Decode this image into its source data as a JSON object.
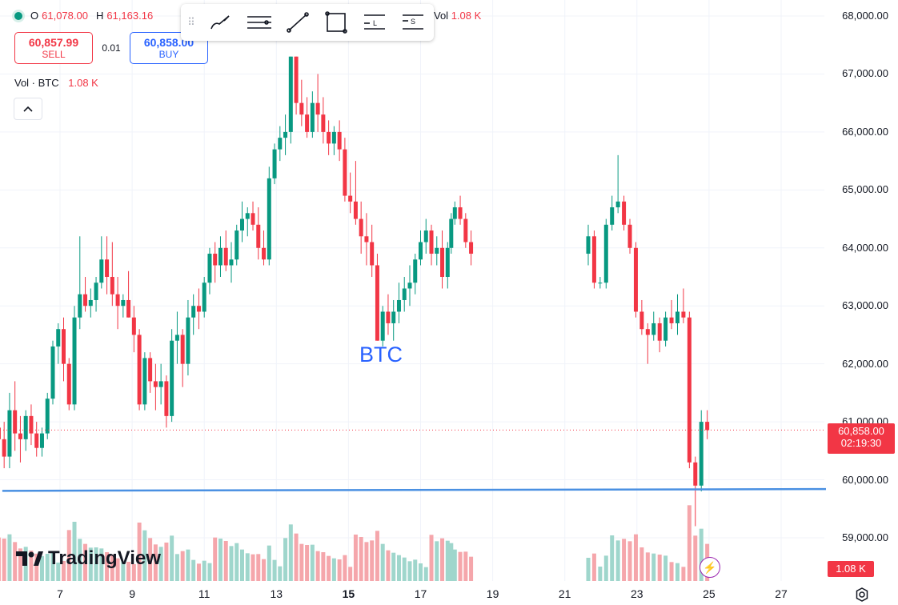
{
  "legend": {
    "open_label": "O",
    "open_value": "61,078.00",
    "high_label": "H",
    "high_value": "61,163.16",
    "vol_label": "Vol",
    "vol_value": "1.08 K"
  },
  "trade": {
    "sell_price": "60,857.99",
    "sell_label": "SELL",
    "spread": "0.01",
    "buy_price": "60,858.00",
    "buy_label": "BUY"
  },
  "volume_legend": {
    "label": "Vol · BTC",
    "value": "1.08 K"
  },
  "collapse_icon": "chevron-up",
  "toolbar_icons": [
    "drag-handle-icon",
    "brush-icon",
    "horizontal-lines-icon",
    "trend-line-icon",
    "rectangle-icon",
    "long-position-icon",
    "short-position-icon"
  ],
  "watermark": "BTC",
  "logo_text": "TradingView",
  "price_tag": {
    "price": "60,858.00",
    "countdown": "02:19:30"
  },
  "volume_tag": "1.08 K",
  "colors": {
    "up": "#089981",
    "down": "#f23645",
    "up_volume": "#9fd6cc",
    "down_volume": "#f5a6ab",
    "line": "#4a90e2",
    "accent": "#2962ff"
  },
  "chart_data": {
    "type": "candlestick",
    "symbol": "BTC",
    "y_ticks": [
      "68,000.00",
      "67,000.00",
      "66,000.00",
      "65,000.00",
      "64,000.00",
      "63,000.00",
      "62,000.00",
      "61,000.00",
      "60,000.00",
      "59,000.00"
    ],
    "x_ticks": [
      {
        "label": "7",
        "major": false
      },
      {
        "label": "9",
        "major": false
      },
      {
        "label": "11",
        "major": false
      },
      {
        "label": "13",
        "major": false
      },
      {
        "label": "15",
        "major": true
      },
      {
        "label": "17",
        "major": false
      },
      {
        "label": "19",
        "major": false
      },
      {
        "label": "21",
        "major": false
      },
      {
        "label": "23",
        "major": false
      },
      {
        "label": "25",
        "major": false
      },
      {
        "label": "27",
        "major": false
      }
    ],
    "x_range_days": [
      5.15,
      28.1
    ],
    "y_range": [
      58400,
      68400
    ],
    "last_price": 60858,
    "horizontal_line": {
      "y_start": 59810,
      "y_end": 59840,
      "x_start_day": 5.4,
      "x_end_day": 27.7
    },
    "bars_per_day": 6,
    "ohlc": [
      [
        5.15,
        61300,
        61400,
        60700,
        60900
      ],
      [
        5.3,
        60900,
        61100,
        60500,
        60700
      ],
      [
        5.45,
        60700,
        61000,
        60200,
        60400
      ],
      [
        5.6,
        60400,
        61500,
        60200,
        61200
      ],
      [
        5.75,
        61200,
        61700,
        60500,
        60800
      ],
      [
        5.9,
        60800,
        61100,
        60300,
        60700
      ],
      [
        6.05,
        60700,
        61200,
        60500,
        61100
      ],
      [
        6.2,
        61100,
        61300,
        60600,
        60800
      ],
      [
        6.35,
        60800,
        61000,
        60400,
        60550
      ],
      [
        6.5,
        60550,
        60900,
        60400,
        60800
      ],
      [
        6.65,
        60800,
        61500,
        60700,
        61400
      ],
      [
        6.8,
        61400,
        62400,
        61300,
        62300
      ],
      [
        6.95,
        62300,
        62700,
        62000,
        62600
      ],
      [
        7.1,
        62600,
        62800,
        61700,
        62000
      ],
      [
        7.25,
        62000,
        62100,
        61200,
        61300
      ],
      [
        7.4,
        61300,
        63000,
        61200,
        62800
      ],
      [
        7.55,
        62800,
        64200,
        62600,
        63200
      ],
      [
        7.7,
        63200,
        63500,
        62900,
        63000
      ],
      [
        7.85,
        63000,
        63300,
        62800,
        63100
      ],
      [
        8.0,
        63100,
        63500,
        62900,
        63400
      ],
      [
        8.15,
        63400,
        64200,
        63300,
        63800
      ],
      [
        8.3,
        63800,
        64200,
        63200,
        63500
      ],
      [
        8.45,
        63500,
        64100,
        63000,
        63200
      ],
      [
        8.6,
        63200,
        63500,
        62600,
        63000
      ],
      [
        8.75,
        63000,
        63200,
        62800,
        63100
      ],
      [
        8.9,
        63100,
        63600,
        62800,
        62800
      ],
      [
        9.05,
        62800,
        63000,
        62200,
        62500
      ],
      [
        9.2,
        62500,
        62600,
        61200,
        61300
      ],
      [
        9.35,
        61300,
        62200,
        61200,
        62100
      ],
      [
        9.5,
        62100,
        62200,
        61500,
        61700
      ],
      [
        9.65,
        61700,
        62000,
        61200,
        61600
      ],
      [
        9.8,
        61600,
        62000,
        61300,
        61700
      ],
      [
        9.95,
        61700,
        61800,
        60900,
        61100
      ],
      [
        10.1,
        61100,
        62600,
        61000,
        62400
      ],
      [
        10.25,
        62400,
        62900,
        62000,
        62500
      ],
      [
        10.4,
        62500,
        62600,
        61600,
        62000
      ],
      [
        10.55,
        62000,
        63100,
        61800,
        62800
      ],
      [
        10.7,
        62800,
        63200,
        62500,
        63000
      ],
      [
        10.85,
        63000,
        63300,
        62600,
        62900
      ],
      [
        11.0,
        62900,
        63500,
        62800,
        63400
      ],
      [
        11.15,
        63400,
        64000,
        63200,
        63900
      ],
      [
        11.3,
        63900,
        64100,
        63400,
        63700
      ],
      [
        11.45,
        63700,
        64200,
        63500,
        64000
      ],
      [
        11.6,
        64000,
        64300,
        63600,
        63700
      ],
      [
        11.75,
        63700,
        64100,
        63400,
        63800
      ],
      [
        11.9,
        63800,
        64400,
        63700,
        64300
      ],
      [
        12.05,
        64300,
        64800,
        64100,
        64500
      ],
      [
        12.2,
        64500,
        64700,
        64200,
        64600
      ],
      [
        12.35,
        64600,
        64800,
        64300,
        64400
      ],
      [
        12.5,
        64400,
        64700,
        63800,
        64000
      ],
      [
        12.65,
        64000,
        64300,
        63700,
        63800
      ],
      [
        12.8,
        63800,
        65400,
        63700,
        65200
      ],
      [
        12.95,
        65200,
        65800,
        65100,
        65700
      ],
      [
        13.1,
        65700,
        66100,
        65500,
        65900
      ],
      [
        13.25,
        65900,
        66300,
        65600,
        66000
      ],
      [
        13.4,
        66000,
        67300,
        65800,
        67300
      ],
      [
        13.55,
        67300,
        67300,
        66300,
        66500
      ],
      [
        13.7,
        66500,
        66900,
        66100,
        66300
      ],
      [
        13.85,
        66300,
        66600,
        65900,
        66000
      ],
      [
        14.0,
        66000,
        66700,
        65900,
        66500
      ],
      [
        14.15,
        66500,
        67000,
        66000,
        66300
      ],
      [
        14.3,
        66300,
        66600,
        65800,
        66000
      ],
      [
        14.45,
        66000,
        66200,
        65600,
        65800
      ],
      [
        14.6,
        65800,
        66100,
        65600,
        66000
      ],
      [
        14.75,
        66000,
        66200,
        65500,
        65700
      ],
      [
        14.9,
        65700,
        65900,
        64800,
        64900
      ],
      [
        15.05,
        64900,
        65300,
        64600,
        64800
      ],
      [
        15.2,
        64800,
        65500,
        64400,
        64500
      ],
      [
        15.35,
        64500,
        64800,
        63900,
        64200
      ],
      [
        15.5,
        64200,
        64600,
        63700,
        64100
      ],
      [
        15.65,
        64100,
        64400,
        63500,
        63700
      ],
      [
        15.8,
        63700,
        63900,
        62400,
        62400
      ],
      [
        15.95,
        62400,
        63000,
        62300,
        62900
      ],
      [
        16.1,
        62900,
        63200,
        62500,
        62700
      ],
      [
        16.25,
        62700,
        63100,
        62400,
        62900
      ],
      [
        16.4,
        62900,
        63400,
        62700,
        63100
      ],
      [
        16.55,
        63100,
        63500,
        62900,
        63300
      ],
      [
        16.7,
        63300,
        63700,
        63000,
        63400
      ],
      [
        16.85,
        63400,
        63900,
        63200,
        63800
      ],
      [
        17.0,
        63800,
        64300,
        63700,
        64100
      ],
      [
        17.15,
        64100,
        64500,
        63900,
        64300
      ],
      [
        17.3,
        64300,
        64400,
        63700,
        63900
      ],
      [
        17.45,
        63900,
        64200,
        63700,
        64000
      ],
      [
        17.6,
        64000,
        64300,
        63300,
        63500
      ],
      [
        17.75,
        63500,
        64100,
        63300,
        64000
      ],
      [
        17.85,
        64000,
        64600,
        63900,
        64500
      ],
      [
        17.95,
        64500,
        64800,
        64400,
        64700
      ],
      [
        18.1,
        64700,
        64900,
        64400,
        64500
      ],
      [
        18.25,
        64500,
        64600,
        64000,
        64100
      ],
      [
        18.4,
        64100,
        64300,
        63700,
        63900
      ]
    ]
  }
}
